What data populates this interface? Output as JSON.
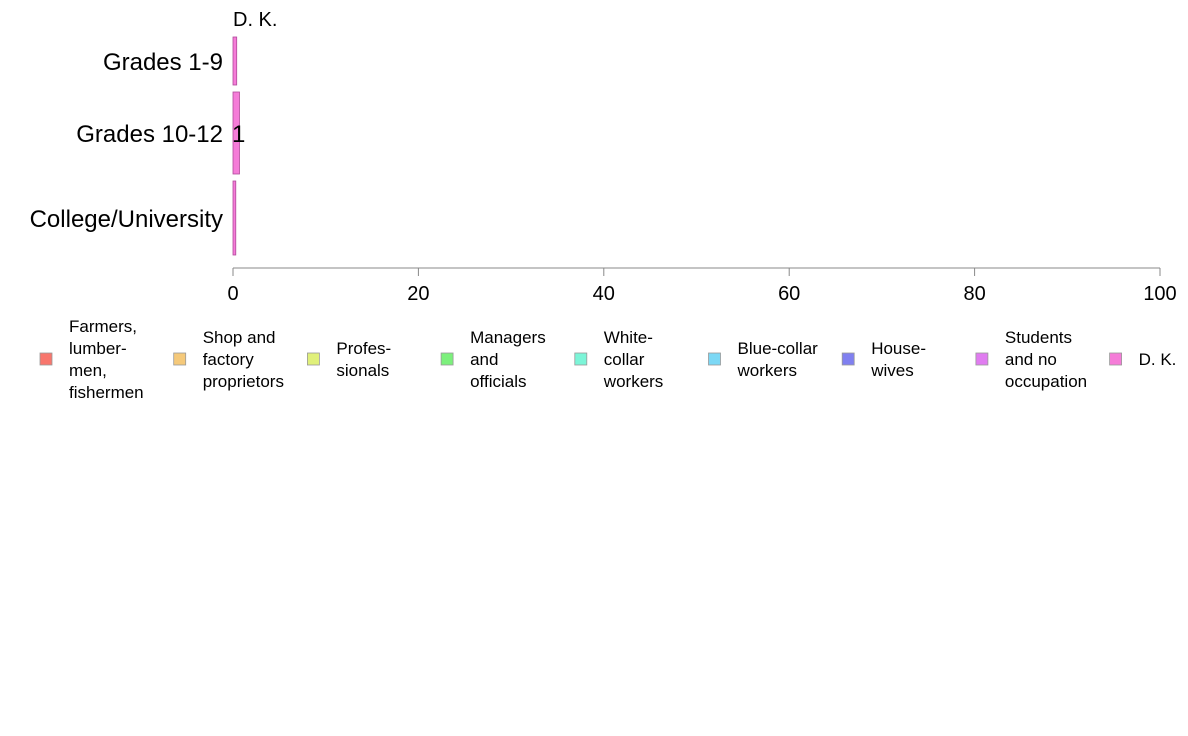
{
  "chart_data": {
    "type": "bar",
    "orientation": "horizontal",
    "stacked": true,
    "panel_title": "D. K.",
    "categories": [
      "Grades 1-9",
      "Grades 10-12",
      "College/University"
    ],
    "series": [
      {
        "name": "Farmers, lumber- men, fishermen",
        "color": "#F8766D",
        "values": [
          0,
          0,
          0
        ]
      },
      {
        "name": "Shop and factory proprietors",
        "color": "#F5C97A",
        "values": [
          0,
          0,
          0
        ]
      },
      {
        "name": "Profes- sionals",
        "color": "#E0F07A",
        "values": [
          0,
          0,
          0
        ]
      },
      {
        "name": "Managers and officials",
        "color": "#7CF07C",
        "values": [
          0,
          0,
          0
        ]
      },
      {
        "name": "White- collar workers",
        "color": "#7CF5D8",
        "values": [
          0,
          0,
          0
        ]
      },
      {
        "name": "Blue-collar workers",
        "color": "#7CD8F5",
        "values": [
          0,
          0,
          0
        ]
      },
      {
        "name": "House- wives",
        "color": "#8080F0",
        "values": [
          0,
          0,
          0
        ]
      },
      {
        "name": "Students and no occupation",
        "color": "#E07CF0",
        "values": [
          0,
          0,
          0
        ]
      },
      {
        "name": "D. K.",
        "color": "#F57CD8",
        "values": [
          0.4,
          0.7,
          0.3
        ]
      }
    ],
    "data_labels": [
      "",
      "1",
      ""
    ],
    "xlim": [
      0,
      100
    ],
    "xticks": [
      "0",
      "20",
      "40",
      "60",
      "80",
      "100"
    ],
    "grid": false,
    "legend_position": "bottom"
  }
}
